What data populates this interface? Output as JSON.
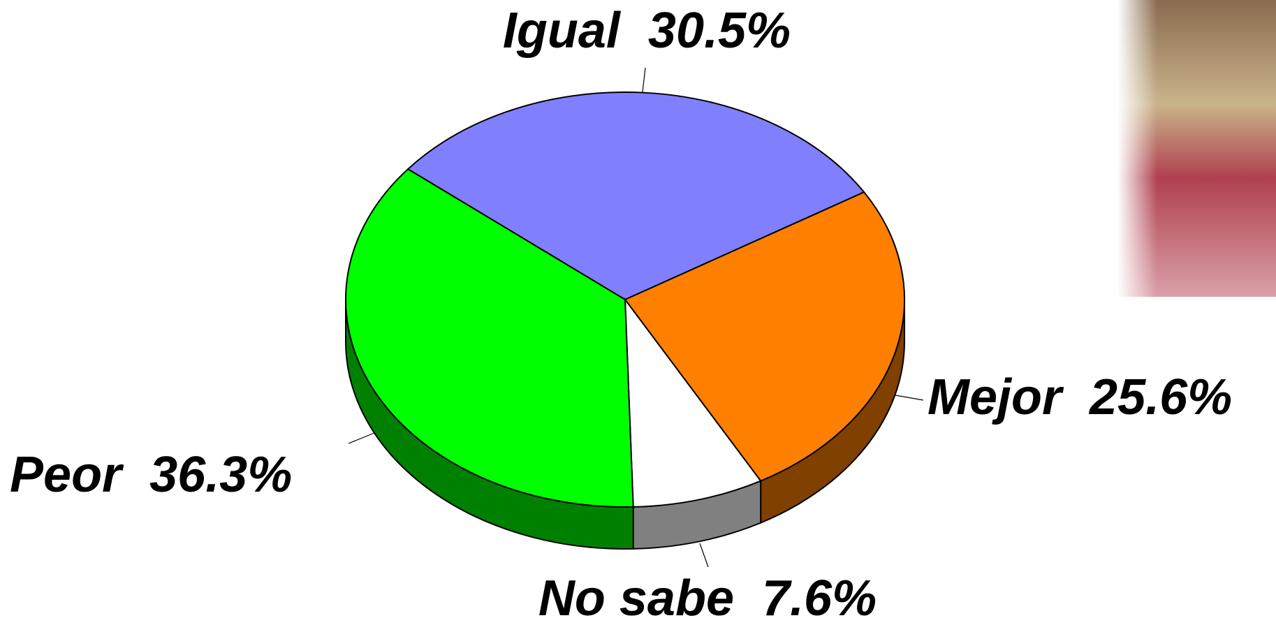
{
  "chart_data": {
    "type": "pie",
    "categories": [
      "Igual",
      "Mejor",
      "No sabe",
      "Peor"
    ],
    "values": [
      30.5,
      25.6,
      7.6,
      36.3
    ],
    "value_labels": [
      "30.5%",
      "25.6%",
      "7.6%",
      "36.3%"
    ],
    "colors": [
      "#8080ff",
      "#ff8000",
      "#ffffff",
      "#00ff00"
    ]
  }
}
